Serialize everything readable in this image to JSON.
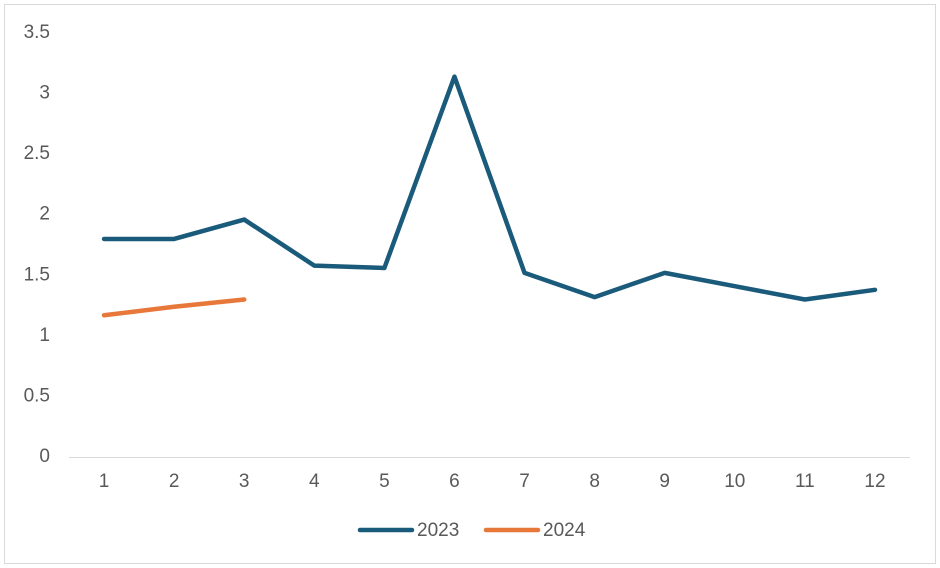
{
  "chart_data": {
    "type": "line",
    "categories": [
      "1",
      "2",
      "3",
      "4",
      "5",
      "6",
      "7",
      "8",
      "9",
      "10",
      "11",
      "12"
    ],
    "series": [
      {
        "name": "2023",
        "color": "#1a5a7a",
        "values": [
          1.8,
          1.8,
          1.96,
          1.58,
          1.56,
          3.14,
          1.52,
          1.32,
          1.52,
          1.41,
          1.3,
          1.38
        ]
      },
      {
        "name": "2024",
        "color": "#e8773a",
        "values": [
          1.17,
          1.24,
          1.3,
          null,
          null,
          null,
          null,
          null,
          null,
          null,
          null,
          null
        ]
      }
    ],
    "ylim": [
      0,
      3.5
    ],
    "yticks": [
      0,
      0.5,
      1,
      1.5,
      2,
      2.5,
      3,
      3.5
    ],
    "grid": false,
    "legend": "bottom"
  }
}
